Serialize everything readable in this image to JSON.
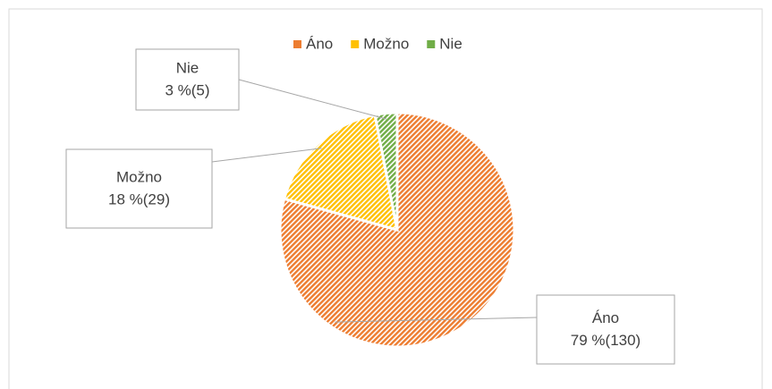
{
  "chart_data": {
    "type": "pie",
    "categories": [
      "Áno",
      "Možno",
      "Nie"
    ],
    "values": [
      130,
      29,
      5
    ],
    "value_labels": [
      "79 %(130)",
      "18 %(29)",
      "3 %(5)"
    ],
    "colors": [
      "#ed7d31",
      "#ffc000",
      "#70ad47"
    ],
    "legend": "top"
  }
}
